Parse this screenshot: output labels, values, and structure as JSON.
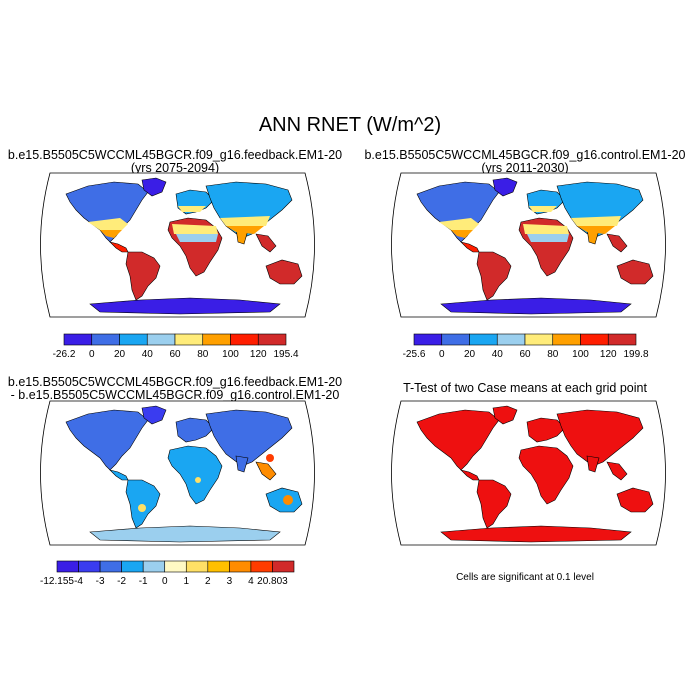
{
  "title": "ANN RNET (W/m^2)",
  "panels": [
    {
      "title_line1": "b.e15.B5505C5WCCML45BGCR.f09_g16.feedback.EM1-20",
      "title_line2": "(yrs 2075-2094)",
      "map_style": "absolute",
      "colorbar": {
        "labels": [
          "-26.2",
          "0",
          "20",
          "40",
          "60",
          "80",
          "100",
          "120",
          "195.4"
        ],
        "colors": [
          "#3a1ee6",
          "#3f6ee6",
          "#1aa6f2",
          "#9bcfee",
          "#ffec7a",
          "#ffa000",
          "#ff1e00",
          "#d12a2a"
        ]
      }
    },
    {
      "title_line1": "b.e15.B5505C5WCCML45BGCR.f09_g16.control.EM1-20",
      "title_line2": "(yrs 2011-2030)",
      "map_style": "absolute",
      "colorbar": {
        "labels": [
          "-25.6",
          "0",
          "20",
          "40",
          "60",
          "80",
          "100",
          "120",
          "199.8"
        ],
        "colors": [
          "#3a1ee6",
          "#3f6ee6",
          "#1aa6f2",
          "#9bcfee",
          "#ffec7a",
          "#ffa000",
          "#ff1e00",
          "#d12a2a"
        ]
      }
    },
    {
      "title_line1": "b.e15.B5505C5WCCML45BGCR.f09_g16.feedback.EM1-20",
      "title_line2": "- b.e15.B5505C5WCCML45BGCR.f09_g16.control.EM1-20",
      "map_style": "difference",
      "colorbar": {
        "labels": [
          "-12.155",
          "-4",
          "-3",
          "-2",
          "-1",
          "0",
          "1",
          "2",
          "3",
          "4",
          "20.803"
        ],
        "colors": [
          "#3a1ee6",
          "#3a3cf0",
          "#3f6ee6",
          "#1aa6f2",
          "#9bcfee",
          "#fff9c4",
          "#ffe066",
          "#ffc000",
          "#ff8c00",
          "#ff3c00",
          "#d12a2a"
        ]
      }
    },
    {
      "title_line1": "T-Test of two Case means at each grid point",
      "map_style": "ttest",
      "note": "Cells are significant at 0.1 level"
    }
  ]
}
